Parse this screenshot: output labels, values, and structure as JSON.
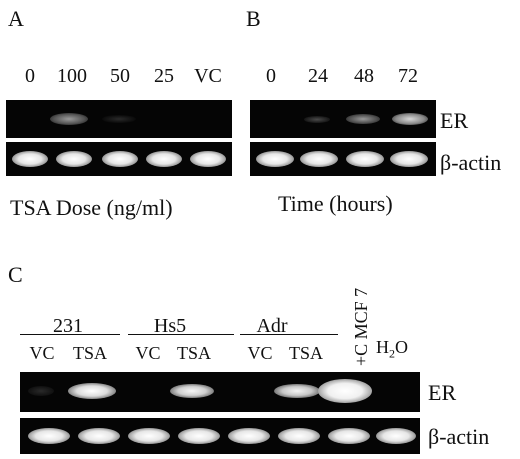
{
  "panel_a": {
    "letter": "A",
    "lanes": [
      "0",
      "100",
      "50",
      "25",
      "VC"
    ],
    "axis_label": "TSA Dose (ng/ml)"
  },
  "panel_b": {
    "letter": "B",
    "lanes": [
      "0",
      "24",
      "48",
      "72"
    ],
    "axis_label": "Time (hours)"
  },
  "panel_c": {
    "letter": "C",
    "groups": [
      "231",
      "Hs5",
      "Adr"
    ],
    "lanes": [
      "VC",
      "TSA",
      "VC",
      "TSA",
      "VC",
      "TSA"
    ],
    "control_label": "+C MCF 7",
    "water_label_main": "H",
    "water_label_sub": "2",
    "water_label_tail": "O"
  },
  "row_labels": {
    "er_top": "ER",
    "actin_top": "β-actin",
    "er_bottom": "ER",
    "actin_bottom": "β-actin"
  }
}
